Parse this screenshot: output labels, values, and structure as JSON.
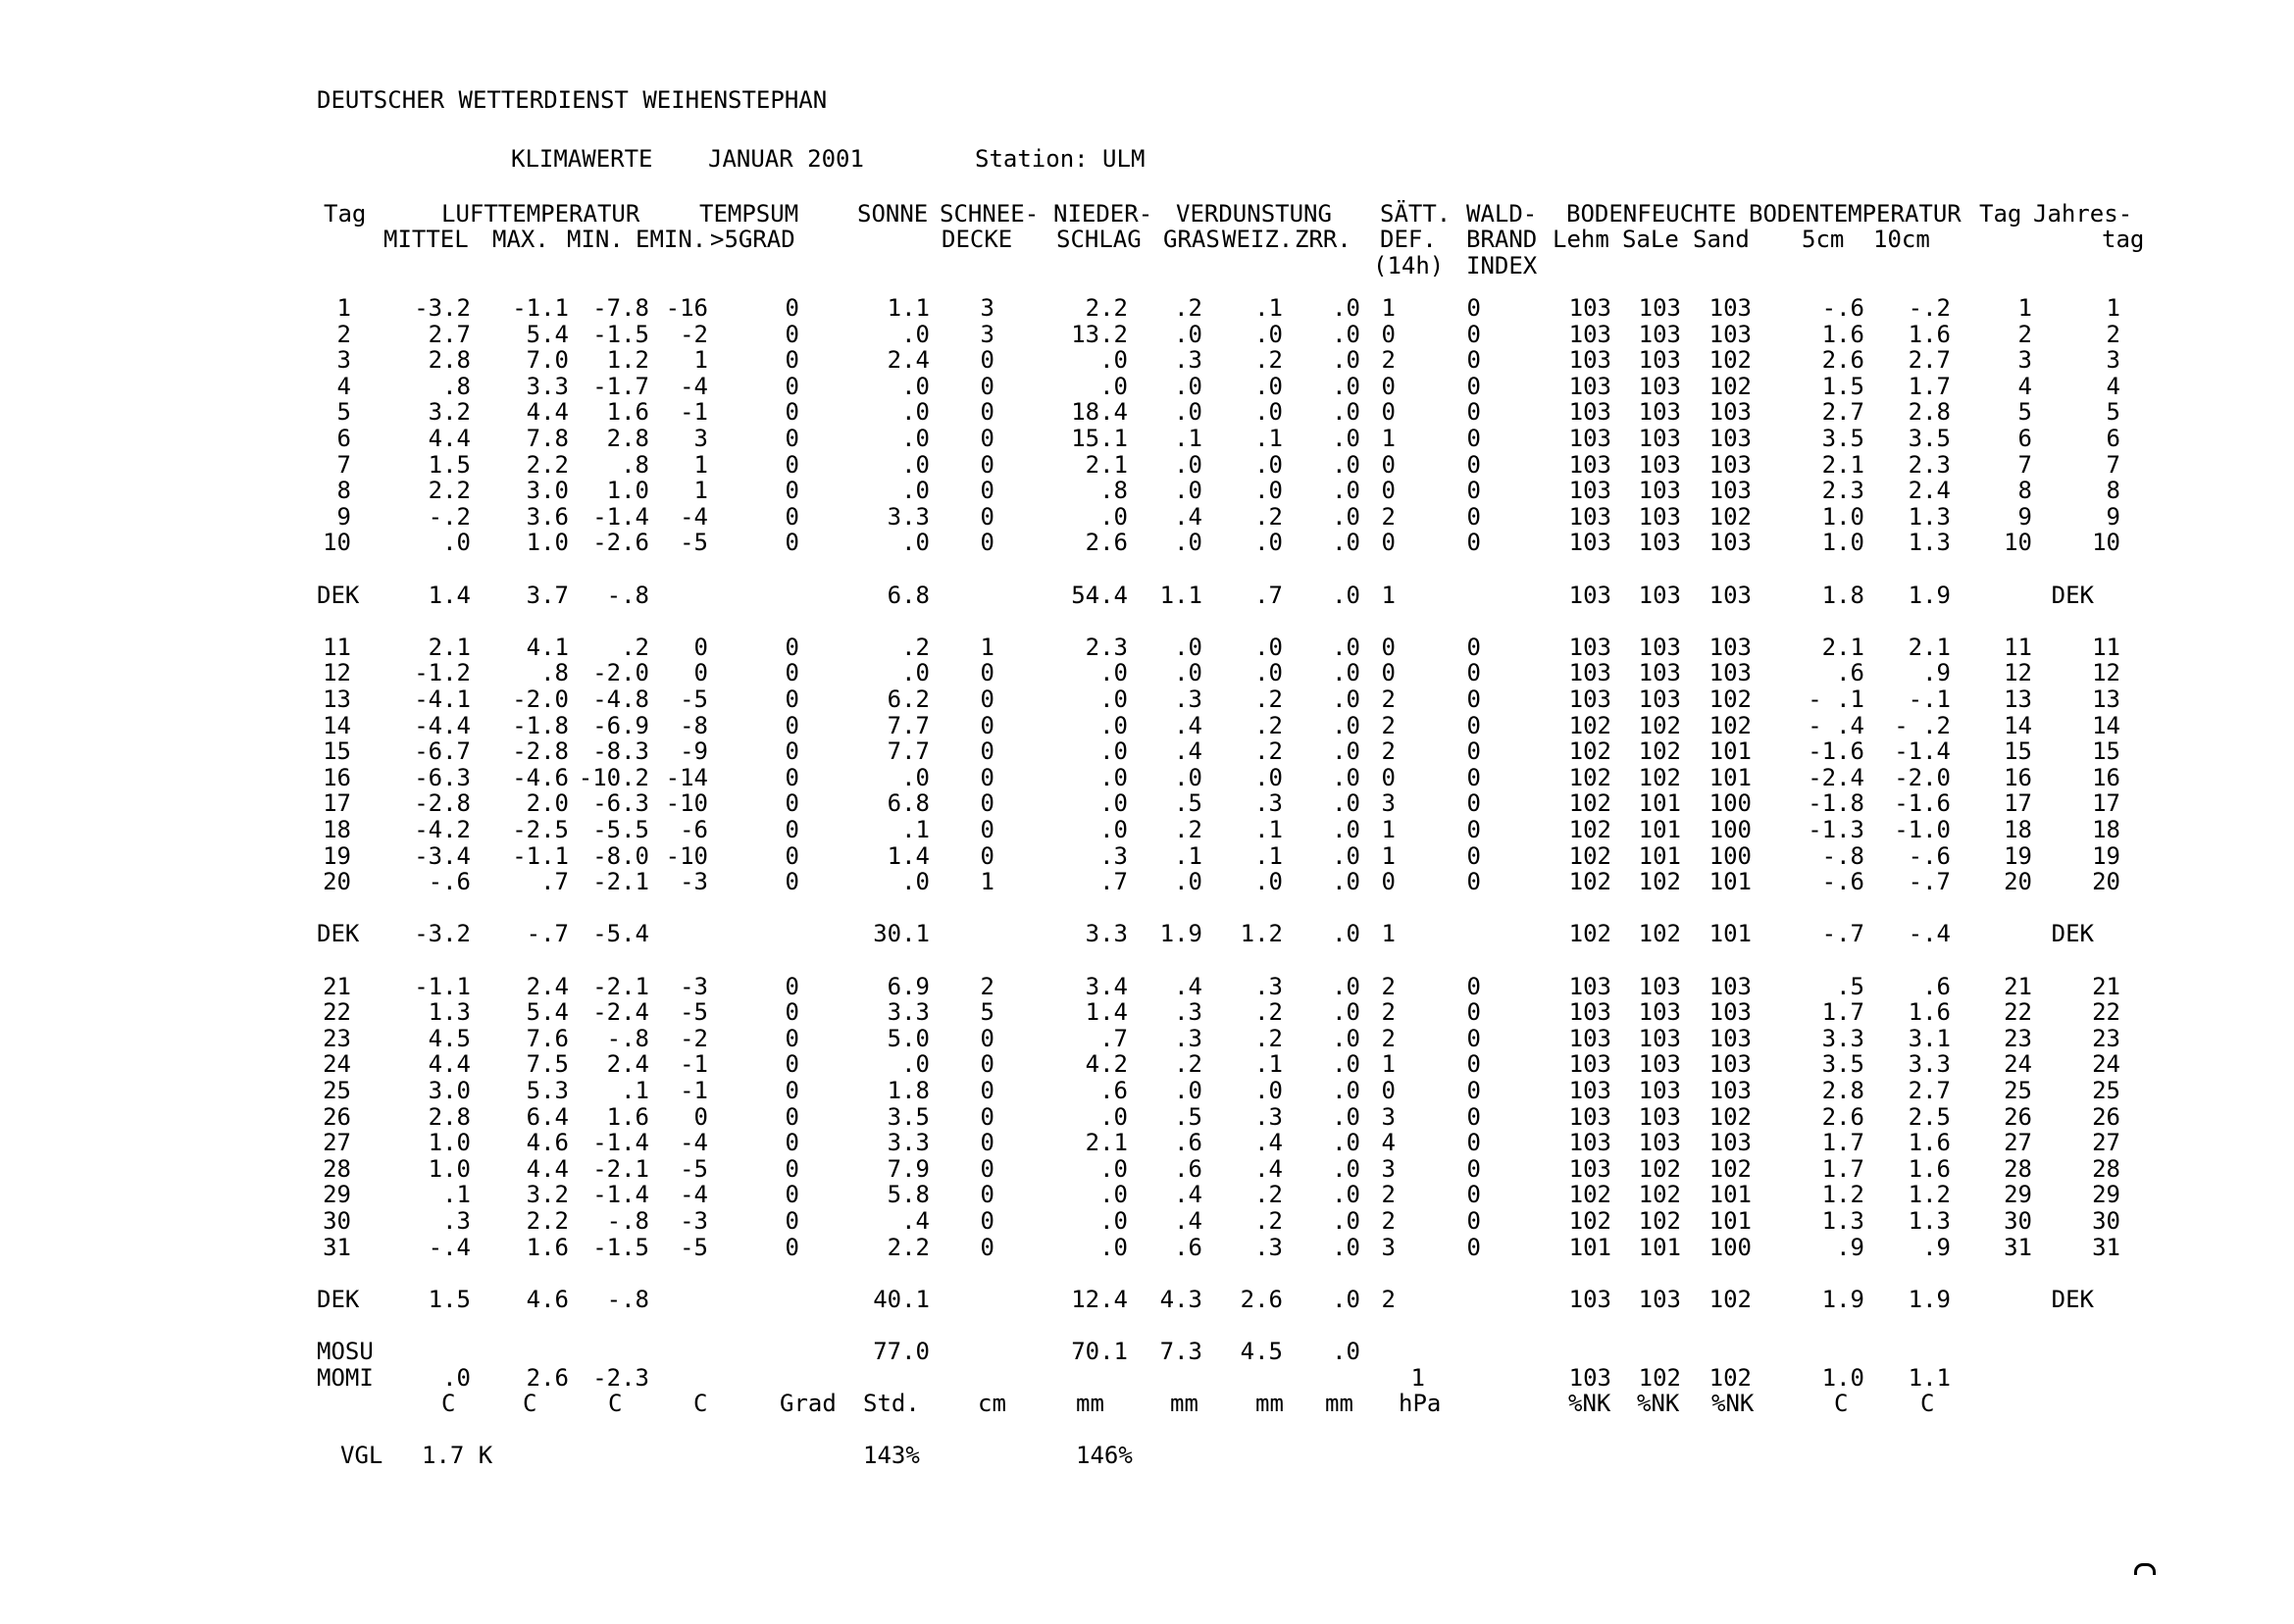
{
  "title": "DEUTSCHER WETTERDIENST WEIHENSTEPHAN",
  "subtitle": {
    "report": "KLIMAWERTE",
    "period": "JANUAR 2001",
    "station": "Station: ULM"
  },
  "table": {
    "column_keys": [
      "day",
      "lufttemperatur-mittel",
      "lufttemperatur-max",
      "lufttemperatur-min",
      "lufttemperatur-emin",
      "tempsum-5grad",
      "sonne",
      "schneedecke",
      "niederschlag",
      "verdunstung-gras",
      "verdunstung-weiz",
      "verdunstung-zrr",
      "saettigungsdefizit-14h",
      "waldbrand-index",
      "bodenfeuchte-lehm",
      "bodenfeuchte-sale",
      "bodenfeuchte-sand",
      "bodentemperatur-5cm",
      "bodentemperatur-10cm",
      "tag",
      "jahrestag"
    ],
    "header_line1": [
      "Tag",
      "LUFTTEMPERATUR",
      "TEMPSUM",
      "SONNE",
      "SCHNEE-",
      "NIEDER-",
      "VERDUNSTUNG",
      "SÄTT.",
      "WALD-",
      "BODENFEUCHTE",
      "BODENTEMPERATUR",
      "Tag",
      "Jahres-"
    ],
    "header_line2": [
      "MITTEL",
      "MAX.",
      "MIN.",
      "EMIN.",
      ">5GRAD",
      "DECKE",
      "SCHLAG",
      "GRAS",
      "WEIZ.",
      "ZRR.",
      "DEF.",
      "BRAND",
      "Lehm",
      "SaLe",
      "Sand",
      "5cm",
      "10cm",
      "tag"
    ],
    "header_line3": [
      "(14h)",
      "INDEX"
    ],
    "day_rows": [
      [
        "1",
        "-3.2",
        "-1.1",
        "-7.8",
        "-16",
        "0",
        "1.1",
        "3",
        "2.2",
        ".2",
        ".1",
        ".0",
        "1",
        "0",
        "103",
        "103",
        "103",
        "-.6",
        "-.2",
        "1",
        "1"
      ],
      [
        "2",
        "2.7",
        "5.4",
        "-1.5",
        "-2",
        "0",
        ".0",
        "3",
        "13.2",
        ".0",
        ".0",
        ".0",
        "0",
        "0",
        "103",
        "103",
        "103",
        "1.6",
        "1.6",
        "2",
        "2"
      ],
      [
        "3",
        "2.8",
        "7.0",
        "1.2",
        "1",
        "0",
        "2.4",
        "0",
        ".0",
        ".3",
        ".2",
        ".0",
        "2",
        "0",
        "103",
        "103",
        "102",
        "2.6",
        "2.7",
        "3",
        "3"
      ],
      [
        "4",
        ".8",
        "3.3",
        "-1.7",
        "-4",
        "0",
        ".0",
        "0",
        ".0",
        ".0",
        ".0",
        ".0",
        "0",
        "0",
        "103",
        "103",
        "102",
        "1.5",
        "1.7",
        "4",
        "4"
      ],
      [
        "5",
        "3.2",
        "4.4",
        "1.6",
        "-1",
        "0",
        ".0",
        "0",
        "18.4",
        ".0",
        ".0",
        ".0",
        "0",
        "0",
        "103",
        "103",
        "103",
        "2.7",
        "2.8",
        "5",
        "5"
      ],
      [
        "6",
        "4.4",
        "7.8",
        "2.8",
        "3",
        "0",
        ".0",
        "0",
        "15.1",
        ".1",
        ".1",
        ".0",
        "1",
        "0",
        "103",
        "103",
        "103",
        "3.5",
        "3.5",
        "6",
        "6"
      ],
      [
        "7",
        "1.5",
        "2.2",
        ".8",
        "1",
        "0",
        ".0",
        "0",
        "2.1",
        ".0",
        ".0",
        ".0",
        "0",
        "0",
        "103",
        "103",
        "103",
        "2.1",
        "2.3",
        "7",
        "7"
      ],
      [
        "8",
        "2.2",
        "3.0",
        "1.0",
        "1",
        "0",
        ".0",
        "0",
        ".8",
        ".0",
        ".0",
        ".0",
        "0",
        "0",
        "103",
        "103",
        "103",
        "2.3",
        "2.4",
        "8",
        "8"
      ],
      [
        "9",
        "-.2",
        "3.6",
        "-1.4",
        "-4",
        "0",
        "3.3",
        "0",
        ".0",
        ".4",
        ".2",
        ".0",
        "2",
        "0",
        "103",
        "103",
        "102",
        "1.0",
        "1.3",
        "9",
        "9"
      ],
      [
        "10",
        ".0",
        "1.0",
        "-2.6",
        "-5",
        "0",
        ".0",
        "0",
        "2.6",
        ".0",
        ".0",
        ".0",
        "0",
        "0",
        "103",
        "103",
        "103",
        "1.0",
        "1.3",
        "10",
        "10"
      ],
      [
        "11",
        "2.1",
        "4.1",
        ".2",
        "0",
        "0",
        ".2",
        "1",
        "2.3",
        ".0",
        ".0",
        ".0",
        "0",
        "0",
        "103",
        "103",
        "103",
        "2.1",
        "2.1",
        "11",
        "11"
      ],
      [
        "12",
        "-1.2",
        ".8",
        "-2.0",
        "0",
        "0",
        ".0",
        "0",
        ".0",
        ".0",
        ".0",
        ".0",
        "0",
        "0",
        "103",
        "103",
        "103",
        ".6",
        ".9",
        "12",
        "12"
      ],
      [
        "13",
        "-4.1",
        "-2.0",
        "-4.8",
        "-5",
        "0",
        "6.2",
        "0",
        ".0",
        ".3",
        ".2",
        ".0",
        "2",
        "0",
        "103",
        "103",
        "102",
        "- .1",
        "-.1",
        "13",
        "13"
      ],
      [
        "14",
        "-4.4",
        "-1.8",
        "-6.9",
        "-8",
        "0",
        "7.7",
        "0",
        ".0",
        ".4",
        ".2",
        ".0",
        "2",
        "0",
        "102",
        "102",
        "102",
        "- .4",
        "- .2",
        "14",
        "14"
      ],
      [
        "15",
        "-6.7",
        "-2.8",
        "-8.3",
        "-9",
        "0",
        "7.7",
        "0",
        ".0",
        ".4",
        ".2",
        ".0",
        "2",
        "0",
        "102",
        "102",
        "101",
        "-1.6",
        "-1.4",
        "15",
        "15"
      ],
      [
        "16",
        "-6.3",
        "-4.6",
        "-10.2",
        "-14",
        "0",
        ".0",
        "0",
        ".0",
        ".0",
        ".0",
        ".0",
        "0",
        "0",
        "102",
        "102",
        "101",
        "-2.4",
        "-2.0",
        "16",
        "16"
      ],
      [
        "17",
        "-2.8",
        "2.0",
        "-6.3",
        "-10",
        "0",
        "6.8",
        "0",
        ".0",
        ".5",
        ".3",
        ".0",
        "3",
        "0",
        "102",
        "101",
        "100",
        "-1.8",
        "-1.6",
        "17",
        "17"
      ],
      [
        "18",
        "-4.2",
        "-2.5",
        "-5.5",
        "-6",
        "0",
        ".1",
        "0",
        ".0",
        ".2",
        ".1",
        ".0",
        "1",
        "0",
        "102",
        "101",
        "100",
        "-1.3",
        "-1.0",
        "18",
        "18"
      ],
      [
        "19",
        "-3.4",
        "-1.1",
        "-8.0",
        "-10",
        "0",
        "1.4",
        "0",
        ".3",
        ".1",
        ".1",
        ".0",
        "1",
        "0",
        "102",
        "101",
        "100",
        "-.8",
        "-.6",
        "19",
        "19"
      ],
      [
        "20",
        "-.6",
        ".7",
        "-2.1",
        "-3",
        "0",
        ".0",
        "1",
        ".7",
        ".0",
        ".0",
        ".0",
        "0",
        "0",
        "102",
        "102",
        "101",
        "-.6",
        "-.7",
        "20",
        "20"
      ],
      [
        "21",
        "-1.1",
        "2.4",
        "-2.1",
        "-3",
        "0",
        "6.9",
        "2",
        "3.4",
        ".4",
        ".3",
        ".0",
        "2",
        "0",
        "103",
        "103",
        "103",
        ".5",
        ".6",
        "21",
        "21"
      ],
      [
        "22",
        "1.3",
        "5.4",
        "-2.4",
        "-5",
        "0",
        "3.3",
        "5",
        "1.4",
        ".3",
        ".2",
        ".0",
        "2",
        "0",
        "103",
        "103",
        "103",
        "1.7",
        "1.6",
        "22",
        "22"
      ],
      [
        "23",
        "4.5",
        "7.6",
        "-.8",
        "-2",
        "0",
        "5.0",
        "0",
        ".7",
        ".3",
        ".2",
        ".0",
        "2",
        "0",
        "103",
        "103",
        "103",
        "3.3",
        "3.1",
        "23",
        "23"
      ],
      [
        "24",
        "4.4",
        "7.5",
        "2.4",
        "-1",
        "0",
        ".0",
        "0",
        "4.2",
        ".2",
        ".1",
        ".0",
        "1",
        "0",
        "103",
        "103",
        "103",
        "3.5",
        "3.3",
        "24",
        "24"
      ],
      [
        "25",
        "3.0",
        "5.3",
        ".1",
        "-1",
        "0",
        "1.8",
        "0",
        ".6",
        ".0",
        ".0",
        ".0",
        "0",
        "0",
        "103",
        "103",
        "103",
        "2.8",
        "2.7",
        "25",
        "25"
      ],
      [
        "26",
        "2.8",
        "6.4",
        "1.6",
        "0",
        "0",
        "3.5",
        "0",
        ".0",
        ".5",
        ".3",
        ".0",
        "3",
        "0",
        "103",
        "103",
        "102",
        "2.6",
        "2.5",
        "26",
        "26"
      ],
      [
        "27",
        "1.0",
        "4.6",
        "-1.4",
        "-4",
        "0",
        "3.3",
        "0",
        "2.1",
        ".6",
        ".4",
        ".0",
        "4",
        "0",
        "103",
        "103",
        "103",
        "1.7",
        "1.6",
        "27",
        "27"
      ],
      [
        "28",
        "1.0",
        "4.4",
        "-2.1",
        "-5",
        "0",
        "7.9",
        "0",
        ".0",
        ".6",
        ".4",
        ".0",
        "3",
        "0",
        "103",
        "102",
        "102",
        "1.7",
        "1.6",
        "28",
        "28"
      ],
      [
        "29",
        ".1",
        "3.2",
        "-1.4",
        "-4",
        "0",
        "5.8",
        "0",
        ".0",
        ".4",
        ".2",
        ".0",
        "2",
        "0",
        "102",
        "102",
        "101",
        "1.2",
        "1.2",
        "29",
        "29"
      ],
      [
        "30",
        ".3",
        "2.2",
        "-.8",
        "-3",
        "0",
        ".4",
        "0",
        ".0",
        ".4",
        ".2",
        ".0",
        "2",
        "0",
        "102",
        "102",
        "101",
        "1.3",
        "1.3",
        "30",
        "30"
      ],
      [
        "31",
        "-.4",
        "1.6",
        "-1.5",
        "-5",
        "0",
        "2.2",
        "0",
        ".0",
        ".6",
        ".3",
        ".0",
        "3",
        "0",
        "101",
        "101",
        "100",
        ".9",
        ".9",
        "31",
        "31"
      ]
    ],
    "dek_rows": [
      [
        "DEK",
        "1.4",
        "3.7",
        "-.8",
        "",
        "",
        "6.8",
        "",
        "54.4",
        "1.1",
        ".7",
        ".0",
        "1",
        "",
        "103",
        "103",
        "103",
        "1.8",
        "1.9",
        "DEK",
        ""
      ],
      [
        "DEK",
        "-3.2",
        "-.7",
        "-5.4",
        "",
        "",
        "30.1",
        "",
        "3.3",
        "1.9",
        "1.2",
        ".0",
        "1",
        "",
        "102",
        "102",
        "101",
        "-.7",
        "-.4",
        "DEK",
        ""
      ],
      [
        "DEK",
        "1.5",
        "4.6",
        "-.8",
        "",
        "",
        "40.1",
        "",
        "12.4",
        "4.3",
        "2.6",
        ".0",
        "2",
        "",
        "103",
        "103",
        "102",
        "1.9",
        "1.9",
        "DEK",
        ""
      ]
    ],
    "mosu_row": [
      "MOSU",
      "",
      "",
      "",
      "",
      "",
      "77.0",
      "",
      "70.1",
      "7.3",
      "4.5",
      ".0",
      "",
      "",
      "",
      "",
      "",
      "",
      "",
      "",
      ""
    ],
    "momi_row": [
      "MOMI",
      ".0",
      "2.6",
      "-2.3",
      "",
      "",
      "",
      "",
      "",
      "",
      "",
      "",
      "1",
      "",
      "103",
      "102",
      "102",
      "1.0",
      "1.1",
      "",
      ""
    ],
    "units_row": [
      "C",
      "C",
      "C",
      "C",
      "Grad",
      "Std.",
      "cm",
      "mm",
      "mm",
      "mm",
      "mm",
      "hPa",
      "%NK",
      "%NK",
      "%NK",
      "C",
      "C"
    ],
    "vgl_row": {
      "label": "VGL",
      "temperature_diff": "1.7 K",
      "sonne_percent": "143%",
      "niederschlag_percent": "146%"
    }
  }
}
